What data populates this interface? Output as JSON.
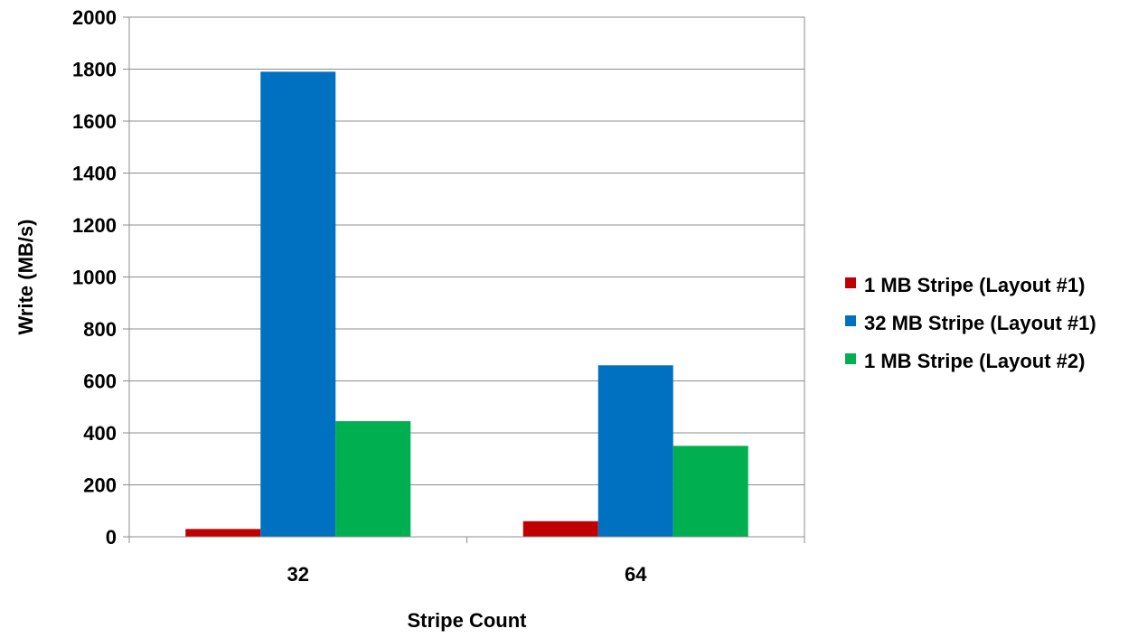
{
  "chart_data": {
    "type": "bar",
    "title": "",
    "xlabel": "Stripe Count",
    "ylabel": "Write (MB/s)",
    "categories": [
      "32",
      "64"
    ],
    "ylim": [
      0,
      2000
    ],
    "yticks": [
      0,
      200,
      400,
      600,
      800,
      1000,
      1200,
      1400,
      1600,
      1800,
      2000
    ],
    "grid": true,
    "legend_position": "right",
    "series": [
      {
        "name": "1 MB Stripe (Layout #1)",
        "color": "#c00000",
        "values": [
          30,
          60
        ]
      },
      {
        "name": "32 MB Stripe (Layout #1)",
        "color": "#0070c0",
        "values": [
          1790,
          660
        ]
      },
      {
        "name": "1 MB Stripe (Layout #2)",
        "color": "#00b050",
        "values": [
          445,
          350
        ]
      }
    ]
  }
}
